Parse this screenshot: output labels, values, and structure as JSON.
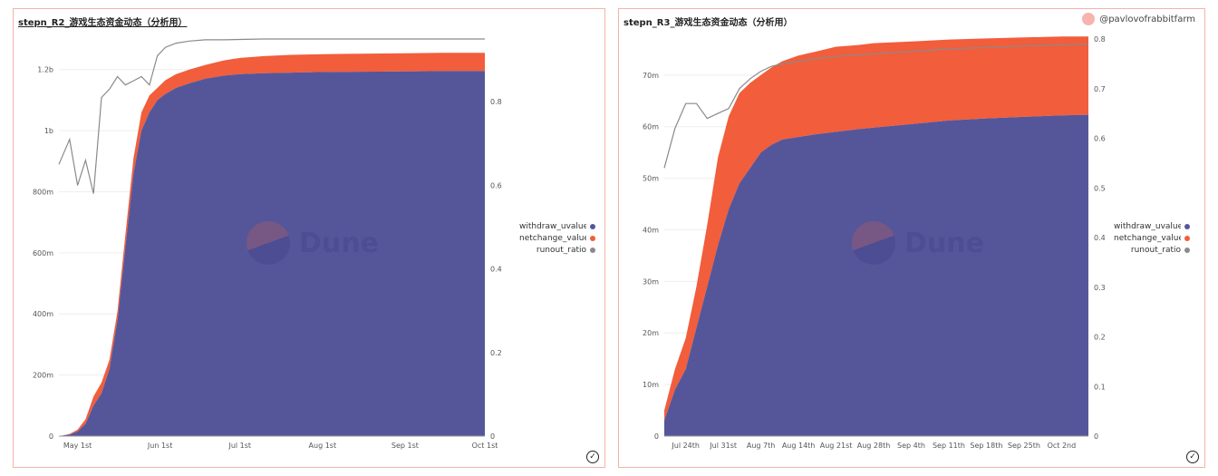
{
  "panels": [
    {
      "title": "stepn_R2_游戏生态资金动态（分析用）",
      "watermark": "Dune",
      "legend": [
        {
          "label": "withdraw_uvalue_",
          "color": "#55569a"
        },
        {
          "label": "netchange_value_c",
          "color": "#f25d3b"
        },
        {
          "label": "runout_ratio",
          "color": "#8a8a8a"
        }
      ]
    },
    {
      "title": "stepn_R3_游戏生态资金动态（分析用）",
      "credit": "@pavlovofrabbitfarm",
      "watermark": "Dune",
      "legend": [
        {
          "label": "withdraw_uvalue_",
          "color": "#55569a"
        },
        {
          "label": "netchange_value_c",
          "color": "#f25d3b"
        },
        {
          "label": "runout_ratio",
          "color": "#8a8a8a"
        }
      ]
    }
  ],
  "chart_data": [
    {
      "type": "area",
      "stacked": true,
      "title": "stepn_R2_游戏生态资金动态（分析用）",
      "x_tick_labels": [
        "May 1st",
        "Jun 1st",
        "Jul 1st",
        "Aug 1st",
        "Sep 1st",
        "Oct 1st"
      ],
      "x": [
        "2022-04-24",
        "2022-04-28",
        "2022-05-01",
        "2022-05-04",
        "2022-05-07",
        "2022-05-10",
        "2022-05-13",
        "2022-05-16",
        "2022-05-19",
        "2022-05-22",
        "2022-05-25",
        "2022-05-28",
        "2022-05-31",
        "2022-06-03",
        "2022-06-07",
        "2022-06-12",
        "2022-06-18",
        "2022-06-25",
        "2022-07-01",
        "2022-07-10",
        "2022-07-20",
        "2022-08-01",
        "2022-08-15",
        "2022-09-01",
        "2022-09-15",
        "2022-10-01"
      ],
      "y_left_ticks": [
        "0",
        "200m",
        "400m",
        "600m",
        "800m",
        "1b",
        "1.2b"
      ],
      "y_left_range": [
        0,
        1300000000
      ],
      "y_right_ticks": [
        "0",
        "0.2",
        "0.4",
        "0.6",
        "0.8"
      ],
      "y_right_range": [
        0,
        0.95
      ],
      "series": [
        {
          "name": "withdraw_uvalue_",
          "axis": "left",
          "color": "#55569a",
          "values": [
            0,
            5000000,
            15000000,
            40000000,
            100000000,
            140000000,
            220000000,
            380000000,
            620000000,
            860000000,
            1000000000,
            1060000000,
            1100000000,
            1120000000,
            1140000000,
            1155000000,
            1170000000,
            1180000000,
            1185000000,
            1188000000,
            1190000000,
            1192000000,
            1193000000,
            1194000000,
            1195000000,
            1195000000
          ]
        },
        {
          "name": "netchange_value_c",
          "axis": "left",
          "color": "#f25d3b",
          "values": [
            0,
            2000000,
            6000000,
            15000000,
            30000000,
            35000000,
            30000000,
            28000000,
            40000000,
            50000000,
            60000000,
            55000000,
            40000000,
            45000000,
            45000000,
            45000000,
            45000000,
            50000000,
            53000000,
            56000000,
            58000000,
            58000000,
            59000000,
            59000000,
            60000000,
            60000000
          ]
        },
        {
          "name": "runout_ratio",
          "axis": "right",
          "color": "#8a8a8a",
          "values": [
            0.65,
            0.71,
            0.6,
            0.66,
            0.58,
            0.81,
            0.83,
            0.86,
            0.84,
            0.85,
            0.86,
            0.84,
            0.91,
            0.93,
            0.94,
            0.945,
            0.948,
            0.948,
            0.949,
            0.95,
            0.95,
            0.95,
            0.95,
            0.95,
            0.95,
            0.95
          ]
        }
      ],
      "grid": true,
      "legend_position": "right"
    },
    {
      "type": "area",
      "stacked": true,
      "title": "stepn_R3_游戏生态资金动态（分析用）",
      "x_tick_labels": [
        "Jul 24th",
        "Jul 31st",
        "Aug 7th",
        "Aug 14th",
        "Aug 21st",
        "Aug 28th",
        "Sep 4th",
        "Sep 11th",
        "Sep 18th",
        "Sep 25th",
        "Oct 2nd"
      ],
      "x": [
        "2022-07-20",
        "2022-07-22",
        "2022-07-24",
        "2022-07-26",
        "2022-07-28",
        "2022-07-30",
        "2022-08-01",
        "2022-08-03",
        "2022-08-05",
        "2022-08-07",
        "2022-08-09",
        "2022-08-11",
        "2022-08-14",
        "2022-08-17",
        "2022-08-21",
        "2022-08-25",
        "2022-08-28",
        "2022-09-04",
        "2022-09-11",
        "2022-09-18",
        "2022-09-25",
        "2022-10-02",
        "2022-10-07"
      ],
      "y_left_ticks": [
        "0",
        "10m",
        "20m",
        "30m",
        "40m",
        "50m",
        "60m",
        "70m"
      ],
      "y_left_range": [
        0,
        77000000
      ],
      "y_right_ticks": [
        "0",
        "0.1",
        "0.2",
        "0.3",
        "0.4",
        "0.5",
        "0.6",
        "0.7",
        "0.8"
      ],
      "y_right_range": [
        0,
        0.8
      ],
      "series": [
        {
          "name": "withdraw_uvalue_",
          "axis": "left",
          "color": "#55569a",
          "values": [
            3000000,
            9000000,
            13000000,
            21000000,
            29000000,
            37000000,
            44000000,
            49000000,
            52000000,
            55000000,
            56500000,
            57500000,
            58000000,
            58500000,
            59000000,
            59500000,
            59800000,
            60500000,
            61200000,
            61600000,
            61900000,
            62200000,
            62300000
          ]
        },
        {
          "name": "netchange_value_c",
          "axis": "left",
          "color": "#f25d3b",
          "values": [
            2000000,
            4000000,
            6000000,
            8000000,
            12000000,
            17000000,
            18000000,
            17500000,
            16500000,
            15000000,
            15000000,
            15200000,
            15800000,
            16000000,
            16500000,
            16300000,
            16400000,
            16000000,
            15700000,
            15500000,
            15400000,
            15300000,
            15200000
          ]
        },
        {
          "name": "runout_ratio",
          "axis": "right",
          "color": "#8a8a8a",
          "values": [
            0.54,
            0.62,
            0.67,
            0.67,
            0.64,
            0.65,
            0.66,
            0.7,
            0.72,
            0.735,
            0.745,
            0.75,
            0.755,
            0.76,
            0.765,
            0.768,
            0.77,
            0.775,
            0.78,
            0.783,
            0.786,
            0.788,
            0.79
          ]
        }
      ],
      "grid": true,
      "legend_position": "right"
    }
  ]
}
